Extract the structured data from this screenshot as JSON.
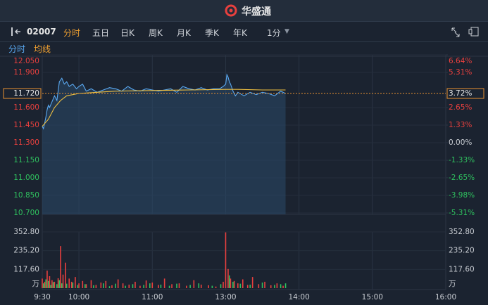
{
  "header": {
    "brand": "华盛通"
  },
  "toolbar": {
    "code": "02007",
    "tabs": [
      "分时",
      "五日",
      "日K",
      "周K",
      "月K",
      "季K",
      "年K",
      "1分"
    ],
    "active": 0
  },
  "subtabs": [
    "分时",
    "均线"
  ],
  "chart_data": {
    "type": "line",
    "up_color": "#e8403e",
    "down_color": "#2fc15f",
    "flat_color": "#c8ccd2",
    "xlim": [
      0,
      330
    ],
    "xticks": [
      {
        "value": 0,
        "label": "9:30"
      },
      {
        "value": 30,
        "label": "10:00"
      },
      {
        "value": 90,
        "label": "11:00"
      },
      {
        "value": 150,
        "label": "13:00"
      },
      {
        "value": 210,
        "label": "14:00"
      },
      {
        "value": 270,
        "label": "15:00"
      },
      {
        "value": 330,
        "label": "16:00"
      }
    ],
    "ylim": [
      10.7,
      12.05
    ],
    "yticks": [
      {
        "value": 12.05,
        "label": "12.050"
      },
      {
        "value": 11.9,
        "label": "11.900"
      },
      {
        "value": 11.6,
        "label": "11.600"
      },
      {
        "value": 11.45,
        "label": "11.450"
      },
      {
        "value": 11.3,
        "label": "11.300"
      },
      {
        "value": 11.15,
        "label": "11.150"
      },
      {
        "value": 11.0,
        "label": "11.000"
      },
      {
        "value": 10.85,
        "label": "10.850"
      },
      {
        "value": 10.7,
        "label": "10.700"
      }
    ],
    "y2lim": [
      -5.31,
      6.64
    ],
    "y2ticks": [
      {
        "value": 6.64,
        "label": "6.64%"
      },
      {
        "value": 5.31,
        "label": "5.31%"
      },
      {
        "value": 2.65,
        "label": "2.65%"
      },
      {
        "value": 1.33,
        "label": "1.33%"
      },
      {
        "value": 0,
        "label": "0.00%"
      },
      {
        "value": -1.33,
        "label": "-1.33%"
      },
      {
        "value": -2.65,
        "label": "-2.65%"
      },
      {
        "value": -3.98,
        "label": "-3.98%"
      },
      {
        "value": -5.31,
        "label": "-5.31%"
      }
    ],
    "current_price": {
      "value": 11.72,
      "label": "11.720"
    },
    "current_change": {
      "value": 3.72,
      "label": "3.72%"
    },
    "series": [
      {
        "color": "#5aa8f0",
        "x": [
          0,
          1,
          2,
          3,
          4,
          5,
          6,
          8,
          10,
          12,
          14,
          16,
          18,
          20,
          22,
          25,
          28,
          30,
          33,
          36,
          40,
          45,
          50,
          55,
          60,
          65,
          70,
          75,
          80,
          85,
          90,
          95,
          100,
          105,
          110,
          115,
          120,
          125,
          130,
          135,
          140,
          145,
          148,
          150,
          151,
          152,
          153,
          154,
          156,
          158,
          160,
          165,
          170,
          175,
          180,
          185,
          190,
          195,
          199
        ],
        "values": [
          11.44,
          11.42,
          11.47,
          11.52,
          11.58,
          11.62,
          11.6,
          11.65,
          11.7,
          11.66,
          11.82,
          11.85,
          11.8,
          11.82,
          11.78,
          11.8,
          11.76,
          11.78,
          11.8,
          11.74,
          11.76,
          11.73,
          11.75,
          11.77,
          11.76,
          11.74,
          11.78,
          11.75,
          11.74,
          11.76,
          11.75,
          11.74,
          11.75,
          11.76,
          11.73,
          11.78,
          11.76,
          11.75,
          11.77,
          11.75,
          11.76,
          11.76,
          11.78,
          11.8,
          11.88,
          11.86,
          11.82,
          11.8,
          11.74,
          11.7,
          11.73,
          11.7,
          11.73,
          11.71,
          11.73,
          11.72,
          11.7,
          11.74,
          11.72
        ]
      },
      {
        "color": "#f0c040",
        "x": [
          0,
          5,
          10,
          15,
          20,
          30,
          45,
          60,
          90,
          120,
          150,
          160,
          180,
          199
        ],
        "values": [
          11.44,
          11.5,
          11.6,
          11.66,
          11.7,
          11.72,
          11.73,
          11.74,
          11.745,
          11.75,
          11.755,
          11.755,
          11.75,
          11.75
        ]
      }
    ],
    "volume": {
      "unit": "万",
      "ylim": [
        0,
        352.8
      ],
      "yticks": [
        {
          "value": 117.6,
          "label": "117.60"
        },
        {
          "value": 235.2,
          "label": "235.20"
        },
        {
          "value": 352.8,
          "label": "352.80"
        }
      ],
      "series": [
        {
          "color": "#e8403e",
          "x": [
            0,
            2,
            4,
            6,
            8,
            10,
            13,
            15,
            17,
            19,
            22,
            24,
            27,
            30,
            33,
            36,
            40,
            44,
            48,
            52,
            57,
            62,
            66,
            71,
            76,
            80,
            85,
            90,
            95,
            100,
            106,
            112,
            118,
            124,
            130,
            136,
            142,
            148,
            150,
            152,
            154,
            157,
            160,
            164,
            168,
            172,
            177,
            182,
            187,
            192,
            197
          ],
          "values": [
            60,
            40,
            110,
            75,
            50,
            40,
            62,
            264,
            85,
            160,
            60,
            40,
            70,
            30,
            45,
            25,
            50,
            20,
            35,
            45,
            18,
            55,
            30,
            22,
            40,
            15,
            48,
            35,
            20,
            60,
            25,
            30,
            15,
            50,
            22,
            18,
            10,
            40,
            350,
            120,
            60,
            45,
            30,
            55,
            20,
            70,
            25,
            40,
            18,
            30,
            15
          ]
        },
        {
          "color": "#2fc15f",
          "x": [
            1,
            3,
            5,
            7,
            9,
            12,
            14,
            16,
            20,
            25,
            29,
            35,
            42,
            50,
            55,
            60,
            68,
            74,
            83,
            88,
            97,
            104,
            110,
            121,
            128,
            139,
            146,
            153,
            156,
            162,
            170,
            180,
            190,
            195,
            199
          ],
          "values": [
            30,
            55,
            45,
            20,
            38,
            25,
            50,
            30,
            28,
            35,
            20,
            25,
            18,
            30,
            12,
            28,
            15,
            25,
            20,
            30,
            22,
            15,
            28,
            20,
            30,
            15,
            25,
            80,
            40,
            28,
            22,
            35,
            20,
            25,
            30
          ]
        }
      ]
    }
  }
}
